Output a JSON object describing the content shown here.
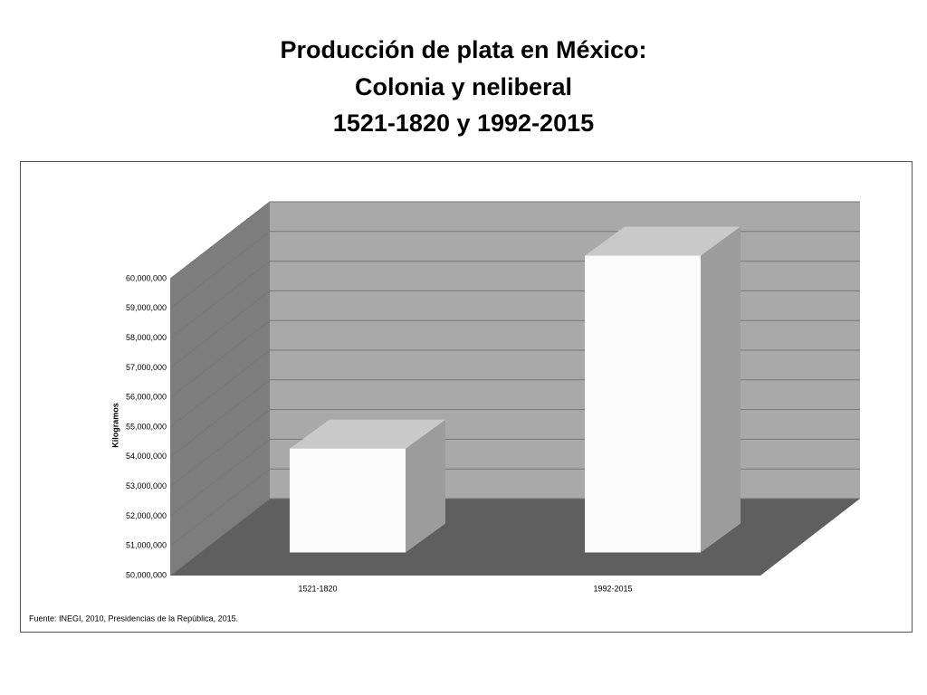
{
  "chart_data": {
    "type": "bar3d",
    "title": [
      "Producción de plata en México:",
      "Colonia y neliberal",
      "1521-1820 y 1992-2015"
    ],
    "y_label": "Kilogramos",
    "categories": [
      "1521-1820",
      "1992-2015"
    ],
    "values": [
      53500000,
      60000000
    ],
    "color": "#fafafa",
    "ylim": [
      50000000,
      60000000
    ],
    "yticks": [
      {
        "value": 50000000,
        "label": "50,000,000"
      },
      {
        "value": 51000000,
        "label": "51,000,000"
      },
      {
        "value": 52000000,
        "label": "52,000,000"
      },
      {
        "value": 53000000,
        "label": "53,000,000"
      },
      {
        "value": 54000000,
        "label": "54,000,000"
      },
      {
        "value": 55000000,
        "label": "55,000,000"
      },
      {
        "value": 56000000,
        "label": "56,000,000"
      },
      {
        "value": 57000000,
        "label": "57,000,000"
      },
      {
        "value": 58000000,
        "label": "58,000,000"
      },
      {
        "value": 59000000,
        "label": "59,000,000"
      },
      {
        "value": 60000000,
        "label": "60,000,000"
      }
    ],
    "grid": true,
    "source": "Fuente: INEGI, 2010, Presidencias de la República, 2015."
  }
}
